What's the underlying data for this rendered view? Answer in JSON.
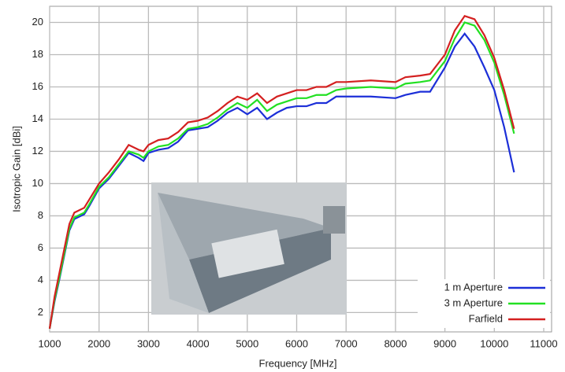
{
  "chart_data": {
    "type": "line",
    "xlabel": "Frequency [MHz]",
    "ylabel": "Isotropic Gain [dBi]",
    "x": [
      1000,
      1100,
      1200,
      1400,
      1500,
      1700,
      1800,
      2000,
      2200,
      2400,
      2600,
      2800,
      2900,
      3000,
      3200,
      3400,
      3600,
      3800,
      4000,
      4200,
      4400,
      4600,
      4800,
      5000,
      5200,
      5400,
      5600,
      5800,
      6000,
      6200,
      6400,
      6600,
      6800,
      7000,
      7500,
      8000,
      8200,
      8500,
      8700,
      9000,
      9200,
      9400,
      9600,
      9800,
      10000,
      10200,
      10400
    ],
    "series": [
      {
        "name": "1 m Aperture",
        "color": "#1c2fd8",
        "values": [
          1,
          2.7,
          4.1,
          7.1,
          7.8,
          8.1,
          8.6,
          9.7,
          10.3,
          11.1,
          11.9,
          11.6,
          11.4,
          11.9,
          12.1,
          12.2,
          12.6,
          13.3,
          13.4,
          13.5,
          13.9,
          14.4,
          14.7,
          14.3,
          14.7,
          14.0,
          14.4,
          14.7,
          14.8,
          14.8,
          15.0,
          15.0,
          15.4,
          15.4,
          15.4,
          15.3,
          15.5,
          15.7,
          15.7,
          17.2,
          18.5,
          19.3,
          18.5,
          17.2,
          15.8,
          13.5,
          10.7
        ]
      },
      {
        "name": "3 m Aperture",
        "color": "#22e022",
        "values": [
          1,
          2.8,
          4.2,
          7.2,
          7.9,
          8.2,
          8.7,
          9.8,
          10.4,
          11.2,
          12.0,
          11.8,
          11.6,
          12.0,
          12.3,
          12.4,
          12.8,
          13.4,
          13.5,
          13.7,
          14.1,
          14.6,
          15.0,
          14.7,
          15.2,
          14.5,
          14.9,
          15.1,
          15.3,
          15.3,
          15.5,
          15.5,
          15.8,
          15.9,
          16.0,
          15.9,
          16.2,
          16.3,
          16.4,
          17.6,
          19.0,
          20.0,
          19.8,
          18.9,
          17.5,
          15.5,
          13.1
        ]
      },
      {
        "name": "Farfield",
        "color": "#d42020",
        "values": [
          1,
          3.0,
          4.5,
          7.5,
          8.2,
          8.5,
          9.0,
          10.0,
          10.7,
          11.5,
          12.4,
          12.1,
          12.0,
          12.4,
          12.7,
          12.8,
          13.2,
          13.8,
          13.9,
          14.1,
          14.5,
          15.0,
          15.4,
          15.2,
          15.6,
          15.0,
          15.4,
          15.6,
          15.8,
          15.8,
          16.0,
          16.0,
          16.3,
          16.3,
          16.4,
          16.3,
          16.6,
          16.7,
          16.8,
          18.0,
          19.5,
          20.4,
          20.2,
          19.2,
          17.8,
          15.8,
          13.4
        ]
      }
    ],
    "xlim": [
      1000,
      11000
    ],
    "xticks": [
      1000,
      2000,
      3000,
      4000,
      5000,
      6000,
      7000,
      8000,
      9000,
      10000,
      11000
    ],
    "ylim": [
      0.8,
      21
    ],
    "yticks": [
      2,
      4,
      6,
      8,
      10,
      12,
      14,
      16,
      18,
      20
    ],
    "grid": true,
    "legend": "lower right"
  }
}
